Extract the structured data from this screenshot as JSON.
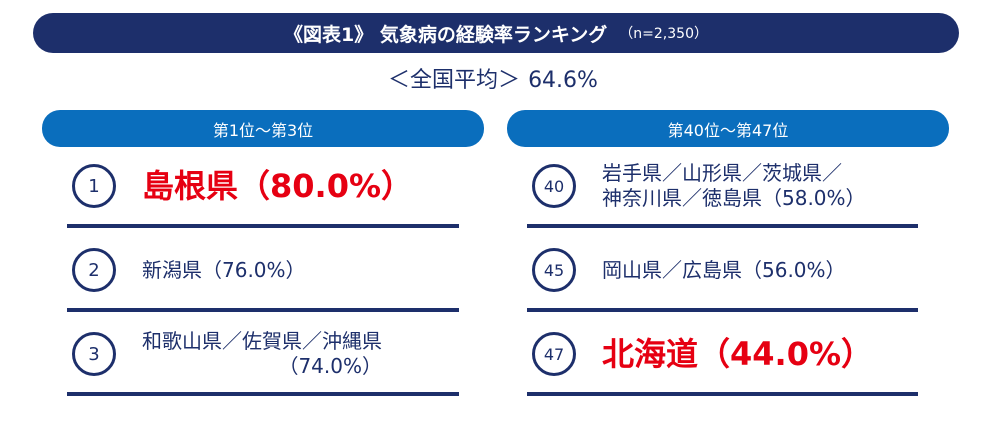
{
  "title": "《図表1》 気象病の経験率ランキング",
  "title_sub": "（n=2,350）",
  "average_label": "＜全国平均＞",
  "average_value": "64.6%",
  "left_header": "第1位～第3位",
  "right_header": "第40位～第47位",
  "colors": {
    "navy": "#1d2f6b",
    "blue": "#0a6ebd",
    "highlight": "#e60012"
  },
  "chart_data": {
    "type": "table",
    "title": "《図表1》 気象病の経験率ランキング",
    "average": 64.6,
    "columns": [
      "第1位～第3位",
      "第40位～第47位"
    ],
    "top": [
      {
        "rank": "1",
        "prefectures": [
          "島根県"
        ],
        "label_lines": [
          "島根県（80.0%）"
        ],
        "value": 80.0,
        "highlight": true
      },
      {
        "rank": "2",
        "prefectures": [
          "新潟県"
        ],
        "label_lines": [
          "新潟県（76.0%）"
        ],
        "value": 76.0,
        "highlight": false
      },
      {
        "rank": "3",
        "prefectures": [
          "和歌山県",
          "佐賀県",
          "沖縄県"
        ],
        "label_lines": [
          "和歌山県／佐賀県／沖縄県",
          "（74.0%）"
        ],
        "value": 74.0,
        "highlight": false
      }
    ],
    "bottom": [
      {
        "rank": "40",
        "prefectures": [
          "岩手県",
          "山形県",
          "茨城県",
          "神奈川県",
          "徳島県"
        ],
        "label_lines": [
          "岩手県／山形県／茨城県／",
          "神奈川県／徳島県（58.0%）"
        ],
        "value": 58.0,
        "highlight": false
      },
      {
        "rank": "45",
        "prefectures": [
          "岡山県",
          "広島県"
        ],
        "label_lines": [
          "岡山県／広島県（56.0%）"
        ],
        "value": 56.0,
        "highlight": false
      },
      {
        "rank": "47",
        "prefectures": [
          "北海道"
        ],
        "label_lines": [
          "北海道（44.0%）"
        ],
        "value": 44.0,
        "highlight": true
      }
    ]
  }
}
